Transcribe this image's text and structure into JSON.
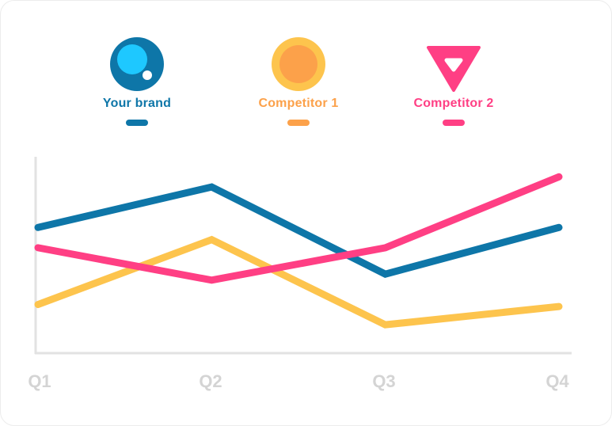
{
  "legend": {
    "items": [
      {
        "label": "Your brand",
        "color": "#0e76a8",
        "icon": "brand-bubble-icon"
      },
      {
        "label": "Competitor 1",
        "color": "#fca14a",
        "icon": "orange-circle-icon"
      },
      {
        "label": "Competitor 2",
        "color": "#ff3f84",
        "icon": "pink-triangle-icon"
      }
    ]
  },
  "chart_data": {
    "type": "line",
    "categories": [
      "Q1",
      "Q2",
      "Q3",
      "Q4"
    ],
    "series": [
      {
        "name": "Your brand",
        "color": "#0e76a8",
        "values": [
          62,
          82,
          39,
          62
        ]
      },
      {
        "name": "Competitor 1",
        "color": "#fdc44d",
        "values": [
          24,
          56,
          14,
          23
        ]
      },
      {
        "name": "Competitor 2",
        "color": "#ff3f84",
        "values": [
          52,
          36,
          52,
          87
        ]
      }
    ],
    "xlabel": "",
    "ylabel": "",
    "ylim": [
      0,
      100
    ],
    "grid": false,
    "legend_position": "top"
  }
}
